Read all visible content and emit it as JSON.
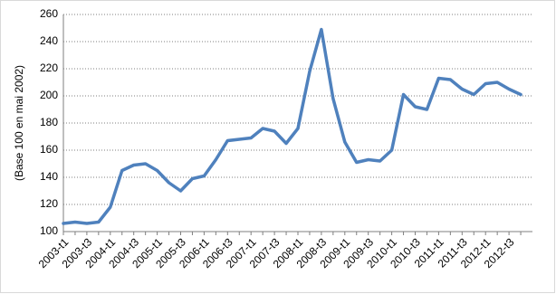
{
  "chart_data": {
    "type": "line",
    "y_label": "(Base 100 en mai 2002)",
    "categories": [
      "2003-t1",
      null,
      "2003-t3",
      null,
      "2004-t1",
      null,
      "2004-t3",
      null,
      "2005-t1",
      null,
      "2005-t3",
      null,
      "2006-t1",
      null,
      "2006-t3",
      null,
      "2007-t1",
      null,
      "2007-t3",
      null,
      "2008-t1",
      null,
      "2008-t3",
      null,
      "2009-t1",
      null,
      "2009-t3",
      null,
      "2010-t1",
      null,
      "2010-t3",
      null,
      "2011-t1",
      null,
      "2011-t3",
      null,
      "2012-t1",
      null,
      "2012-t3",
      null
    ],
    "series": [
      {
        "color": "#4f81bd",
        "values": [
          106,
          107,
          106,
          107,
          118,
          145,
          149,
          150,
          145,
          136,
          130,
          139,
          141,
          153,
          167,
          168,
          169,
          176,
          174,
          165,
          176,
          218,
          249,
          198,
          166,
          151,
          153,
          152,
          160,
          201,
          192,
          190,
          213,
          212,
          205,
          201,
          209,
          210,
          205,
          201
        ]
      }
    ],
    "ylim": [
      100,
      260
    ],
    "yticks": [
      100,
      120,
      140,
      160,
      180,
      200,
      220,
      240,
      260
    ],
    "grid": true
  }
}
